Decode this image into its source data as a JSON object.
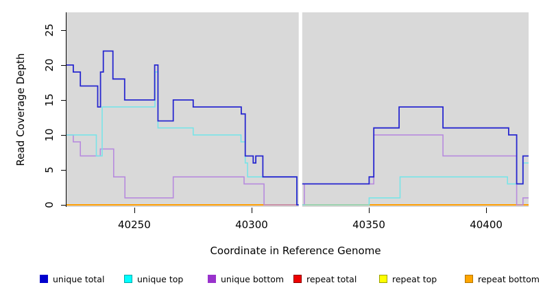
{
  "chart_data": {
    "type": "line",
    "subtype": "step-coverage",
    "title": "",
    "xlabel": "Coordinate in Reference Genome",
    "ylabel": "Read Coverage Depth",
    "x_ticks": [
      40250,
      40300,
      40350,
      40400
    ],
    "y_ticks": [
      0,
      5,
      10,
      15,
      20,
      25
    ],
    "xlim": [
      40221.1,
      40418.1
    ],
    "ylim": [
      -0.5,
      27.5
    ],
    "grid": false,
    "plot_background": "#d9d9d9",
    "gap_band": {
      "x_start": 40320.1,
      "x_end": 40321.6,
      "color": "#ffffff"
    },
    "legend_position": "bottom",
    "series": [
      {
        "name": "unique total",
        "color": "#2727cf",
        "width": 1.8,
        "steps": [
          [
            40221.1,
            20
          ],
          [
            40224,
            19
          ],
          [
            40227,
            17
          ],
          [
            40234.4,
            14
          ],
          [
            40235.6,
            19
          ],
          [
            40236.8,
            22
          ],
          [
            40240.9,
            18
          ],
          [
            40245.9,
            15
          ],
          [
            40258.7,
            20
          ],
          [
            40260.1,
            12
          ],
          [
            40266.6,
            15
          ],
          [
            40275.1,
            14
          ],
          [
            40295.6,
            13
          ],
          [
            40297.3,
            7
          ],
          [
            40300.7,
            6
          ],
          [
            40301.8,
            7
          ],
          [
            40304.8,
            4
          ],
          [
            40319.3,
            0
          ],
          [
            40321.2,
            3
          ],
          [
            40350.1,
            4
          ],
          [
            40352.1,
            11
          ],
          [
            40362.9,
            14
          ],
          [
            40381.6,
            11
          ],
          [
            40409.6,
            10
          ],
          [
            40413,
            3
          ],
          [
            40415.7,
            7
          ]
        ]
      },
      {
        "name": "unique top",
        "color": "#79e4e8",
        "width": 1.6,
        "steps": [
          [
            40221.1,
            10
          ],
          [
            40233.8,
            7
          ],
          [
            40236.3,
            14
          ],
          [
            40258.8,
            19
          ],
          [
            40260.1,
            11
          ],
          [
            40275.1,
            10
          ],
          [
            40295.5,
            9
          ],
          [
            40297.3,
            6
          ],
          [
            40298.3,
            4
          ],
          [
            40319.3,
            0
          ],
          [
            40350.1,
            1
          ],
          [
            40363.3,
            4
          ],
          [
            40409.1,
            3
          ],
          [
            40415.7,
            6
          ]
        ]
      },
      {
        "name": "unique bottom",
        "color": "#b78ade",
        "width": 1.6,
        "steps": [
          [
            40221.1,
            10
          ],
          [
            40224,
            9
          ],
          [
            40227,
            7
          ],
          [
            40235.5,
            8
          ],
          [
            40241.2,
            4
          ],
          [
            40246,
            1
          ],
          [
            40266.6,
            4
          ],
          [
            40296.8,
            3
          ],
          [
            40305.3,
            0
          ],
          [
            40322.5,
            3
          ],
          [
            40352.1,
            10
          ],
          [
            40381.6,
            7
          ],
          [
            40413,
            0
          ],
          [
            40415.7,
            1
          ]
        ]
      },
      {
        "name": "repeat total",
        "color": "#e60000",
        "width": 1.6,
        "steps": [
          [
            40221.1,
            0
          ]
        ]
      },
      {
        "name": "repeat top",
        "color": "#ffff00",
        "width": 1.6,
        "steps": [
          [
            40221.1,
            0
          ]
        ]
      },
      {
        "name": "repeat bottom",
        "color": "#ff9e00",
        "width": 2,
        "steps": [
          [
            40221.1,
            0
          ]
        ]
      }
    ],
    "draw_order": [
      3,
      4,
      5,
      2,
      1,
      0
    ],
    "legend": [
      {
        "label": "unique total",
        "fill": "#0000cd",
        "border": "#0000cd"
      },
      {
        "label": "unique top",
        "fill": "#00ffff",
        "border": "#00a8a8"
      },
      {
        "label": "unique bottom",
        "fill": "#9932cc",
        "border": "#9932cc"
      },
      {
        "label": "repeat total",
        "fill": "#ee0000",
        "border": "#8b0000"
      },
      {
        "label": "repeat top",
        "fill": "#ffff00",
        "border": "#9aa000"
      },
      {
        "label": "repeat bottom",
        "fill": "#ffa500",
        "border": "#b37400"
      }
    ]
  }
}
